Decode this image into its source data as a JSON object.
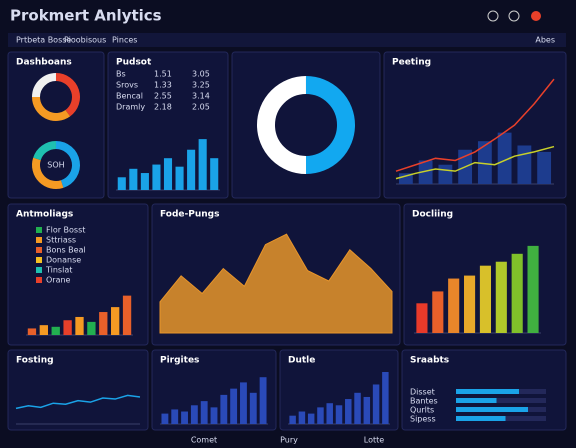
{
  "header": {
    "title": "Prokmert Anlytics",
    "tabs": [
      "Prtbeta Bosse",
      "Pioobisous",
      "Pinces"
    ],
    "link": "Abes"
  },
  "panels": [
    {
      "title": "Dashboans",
      "donuts": [
        {
          "values": [
            40,
            35,
            25
          ],
          "colors": [
            "#e8402a",
            "#f59a23",
            "#f0f0f0"
          ]
        },
        {
          "label": "SOH",
          "values": [
            45,
            35,
            20
          ],
          "colors": [
            "#1aa3e8",
            "#f59a23",
            "#1fc0b0"
          ]
        }
      ]
    },
    {
      "title": "Pudsot",
      "rows": [
        [
          "Bs",
          "1.51",
          "3.05"
        ],
        [
          "Srovs",
          "1.33",
          "3.25"
        ],
        [
          "Bencal",
          "2.55",
          "3.14"
        ],
        [
          "Dramly",
          "2.18",
          "2.05"
        ]
      ],
      "bars": [
        12,
        20,
        16,
        24,
        30,
        22,
        38,
        48,
        30
      ],
      "color": "#1aa3e8",
      "ylim": [
        0,
        50
      ]
    },
    {
      "donuts": [
        {
          "values": [
            50,
            50
          ],
          "colors": [
            "#12a8f0",
            "#ffffff"
          ]
        }
      ]
    },
    {
      "title": "Peeting",
      "bars": [
        10,
        22,
        18,
        32,
        40,
        48,
        36,
        30
      ],
      "color": "#1d3c8e",
      "lines": [
        {
          "color": "#e8402a",
          "values": [
            12,
            18,
            24,
            22,
            30,
            42,
            55,
            75,
            98
          ]
        },
        {
          "color": "#c8d02a",
          "values": [
            5,
            10,
            14,
            12,
            20,
            18,
            26,
            30,
            35
          ]
        }
      ],
      "ylim": [
        0,
        100
      ]
    },
    {
      "title": "Antmoliags",
      "legend": [
        {
          "name": "Flor Bosst",
          "color": "#22b050"
        },
        {
          "name": "Sttriass",
          "color": "#f59a23"
        },
        {
          "name": "Bons Beal",
          "color": "#e8602a"
        },
        {
          "name": "Donanse",
          "color": "#f5c023"
        },
        {
          "name": "Tinslat",
          "color": "#1fc0b0"
        },
        {
          "name": "Orane",
          "color": "#e8402a"
        }
      ],
      "bars": [
        8,
        12,
        10,
        18,
        22,
        16,
        28,
        34,
        48
      ],
      "colors": [
        "#e8602a",
        "#f59a23",
        "#22b050",
        "#e8402a",
        "#f59a23",
        "#22b050",
        "#e8602a",
        "#f59a23",
        "#e8602a"
      ],
      "ylim": [
        0,
        50
      ]
    },
    {
      "title": "Fode-Pungs",
      "area": [
        30,
        55,
        38,
        62,
        45,
        85,
        95,
        60,
        50,
        80,
        62,
        40
      ],
      "color": "#e8952a",
      "ylim": [
        0,
        100
      ]
    },
    {
      "title": "Docliing",
      "bars": [
        30,
        42,
        55,
        58,
        68,
        72,
        80,
        88
      ],
      "colors": [
        "#e83a2a",
        "#e8602a",
        "#e8862a",
        "#e8a82a",
        "#d8c02a",
        "#b0c82a",
        "#80c02a",
        "#40b040"
      ],
      "ylim": [
        0,
        100
      ]
    },
    {
      "title": "Fosting",
      "line": [
        30,
        35,
        32,
        40,
        38,
        45,
        42,
        50,
        48,
        55,
        52
      ],
      "color": "#1aa3e8",
      "ylim": [
        0,
        100
      ]
    },
    {
      "title": "Pirgites",
      "bars": [
        10,
        14,
        12,
        18,
        22,
        16,
        28,
        34,
        40,
        30,
        45
      ],
      "color": "#2a4ab8",
      "ylim": [
        0,
        50
      ]
    },
    {
      "title": "Dutle",
      "bars": [
        8,
        12,
        10,
        16,
        20,
        18,
        24,
        30,
        26,
        38,
        50
      ],
      "color": "#2a4ab8",
      "ylim": [
        0,
        50
      ]
    },
    {
      "title": "Sraabts",
      "progress": [
        {
          "name": "Disset",
          "value": 70
        },
        {
          "name": "Bantes",
          "value": 45
        },
        {
          "name": "Qurlts",
          "value": 80
        },
        {
          "name": "Sipess",
          "value": 55
        }
      ],
      "color": "#1aa3e8",
      "xlim": [
        0,
        100
      ]
    }
  ],
  "footer": [
    "Comet",
    "Pury",
    "Lotte"
  ]
}
